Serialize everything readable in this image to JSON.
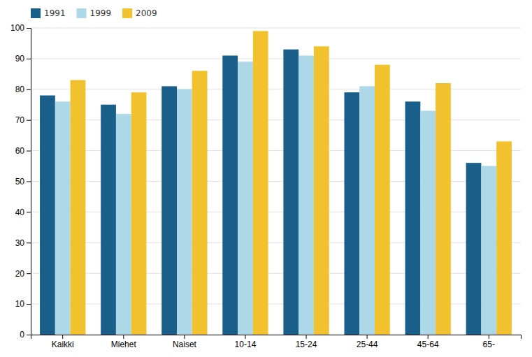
{
  "chart_data": {
    "type": "bar",
    "categories": [
      "Kaikki",
      "Miehet",
      "Naiset",
      "10-14",
      "15-24",
      "25-44",
      "45-64",
      "65-"
    ],
    "series": [
      {
        "name": "1991",
        "color": "#1A5F8A",
        "values": [
          78,
          75,
          81,
          91,
          93,
          79,
          76,
          56
        ]
      },
      {
        "name": "1999",
        "color": "#ADD8E8",
        "values": [
          76,
          72,
          80,
          89,
          91,
          81,
          73,
          55
        ]
      },
      {
        "name": "2009",
        "color": "#F2C12E",
        "values": [
          83,
          79,
          86,
          99,
          94,
          88,
          82,
          63
        ]
      }
    ],
    "ylim": [
      0,
      100
    ],
    "yticks": [
      0,
      10,
      20,
      30,
      40,
      50,
      60,
      70,
      80,
      90,
      100
    ],
    "grid": true,
    "legend": "upper left"
  }
}
